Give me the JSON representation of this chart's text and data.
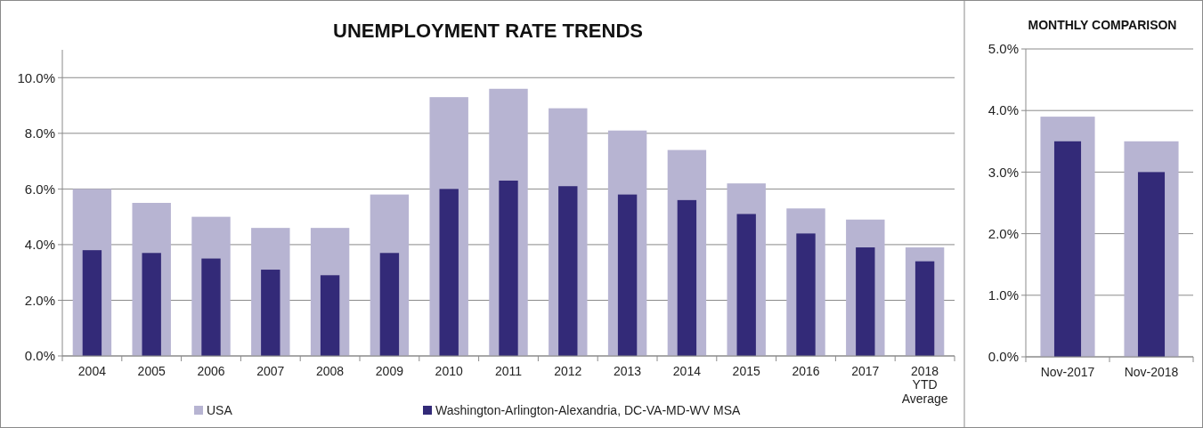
{
  "chart_data": [
    {
      "type": "bar",
      "title": "UNEMPLOYMENT RATE TRENDS",
      "categories": [
        "2004",
        "2005",
        "2006",
        "2007",
        "2008",
        "2009",
        "2010",
        "2011",
        "2012",
        "2013",
        "2014",
        "2015",
        "2016",
        "2017",
        "2018\nYTD\nAverage"
      ],
      "series": [
        {
          "name": "USA",
          "color": "#b7b4d2",
          "values": [
            6.0,
            5.5,
            5.0,
            4.6,
            4.6,
            5.8,
            9.3,
            9.6,
            8.9,
            8.1,
            7.4,
            6.2,
            5.3,
            4.9,
            3.9
          ]
        },
        {
          "name": "Washington-Arlington-Alexandria, DC-VA-MD-WV MSA",
          "color": "#332a78",
          "values": [
            3.8,
            3.7,
            3.5,
            3.1,
            2.9,
            3.7,
            6.0,
            6.3,
            6.1,
            5.8,
            5.6,
            5.1,
            4.4,
            3.9,
            3.4
          ]
        }
      ],
      "ylim": [
        0,
        11
      ],
      "yticks": [
        {
          "value": 0,
          "label": "0.0%"
        },
        {
          "value": 2,
          "label": "2.0%"
        },
        {
          "value": 4,
          "label": "4.0%"
        },
        {
          "value": 6,
          "label": "6.0%"
        },
        {
          "value": 8,
          "label": "8.0%"
        },
        {
          "value": 10,
          "label": "10.0%"
        }
      ],
      "grid": "y",
      "legend": "bottom"
    },
    {
      "type": "bar",
      "title": "MONTHLY COMPARISON",
      "categories": [
        "Nov-2017",
        "Nov-2018"
      ],
      "series": [
        {
          "color": "#b7b4d2",
          "values": [
            3.9,
            3.5
          ]
        },
        {
          "color": "#332a78",
          "values": [
            3.5,
            3.0
          ]
        }
      ],
      "ylim": [
        0,
        5
      ],
      "yticks": [
        {
          "value": 0,
          "label": "0.0%"
        },
        {
          "value": 1,
          "label": "1.0%"
        },
        {
          "value": 2,
          "label": "2.0%"
        },
        {
          "value": 3,
          "label": "3.0%"
        },
        {
          "value": 4,
          "label": "4.0%"
        },
        {
          "value": 5,
          "label": "5.0%"
        }
      ],
      "grid": "y"
    }
  ]
}
